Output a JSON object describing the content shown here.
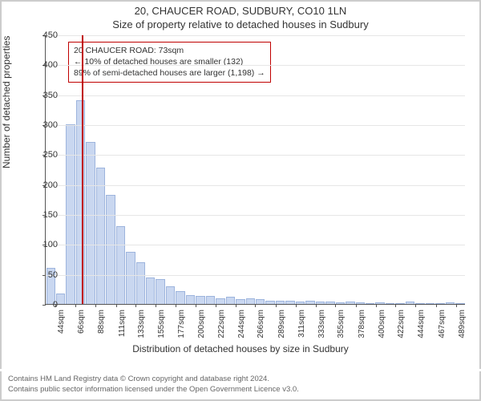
{
  "title_main": "20, CHAUCER ROAD, SUDBURY, CO10 1LN",
  "title_sub": "Size of property relative to detached houses in Sudbury",
  "y_axis_label": "Number of detached properties",
  "x_axis_label": "Distribution of detached houses by size in Sudbury",
  "chart": {
    "type": "histogram",
    "ylim": [
      0,
      450
    ],
    "ytick_step": 50,
    "bar_fill": "#c9d7f0",
    "bar_stroke": "#9db4dd",
    "background": "#ffffff",
    "grid_color": "#e6e6e6",
    "axis_color": "#555555",
    "marker_line_color": "#c00000",
    "marker_x_value": 73,
    "annotation_border": "#c00000",
    "x_min": 33,
    "x_max": 500,
    "bar_width_sqm": 11,
    "categories": [
      "44sqm",
      "66sqm",
      "88sqm",
      "111sqm",
      "133sqm",
      "155sqm",
      "177sqm",
      "200sqm",
      "222sqm",
      "244sqm",
      "266sqm",
      "289sqm",
      "311sqm",
      "333sqm",
      "355sqm",
      "378sqm",
      "400sqm",
      "422sqm",
      "444sqm",
      "467sqm",
      "489sqm"
    ],
    "values": [
      60,
      18,
      300,
      340,
      270,
      228,
      182,
      130,
      87,
      70,
      44,
      42,
      30,
      22,
      15,
      14,
      13,
      10,
      12,
      8,
      10,
      8,
      6,
      6,
      5,
      4,
      6,
      4,
      4,
      3,
      4,
      3,
      2,
      3,
      2,
      2,
      4,
      2,
      2,
      2,
      3,
      2
    ]
  },
  "annotation": {
    "line1": "20 CHAUCER ROAD: 73sqm",
    "line2": "← 10% of detached houses are smaller (132)",
    "line3": "89% of semi-detached houses are larger (1,198) →"
  },
  "footer": {
    "line1": "Contains HM Land Registry data © Crown copyright and database right 2024.",
    "line2": "Contains public sector information licensed under the Open Government Licence v3.0."
  }
}
